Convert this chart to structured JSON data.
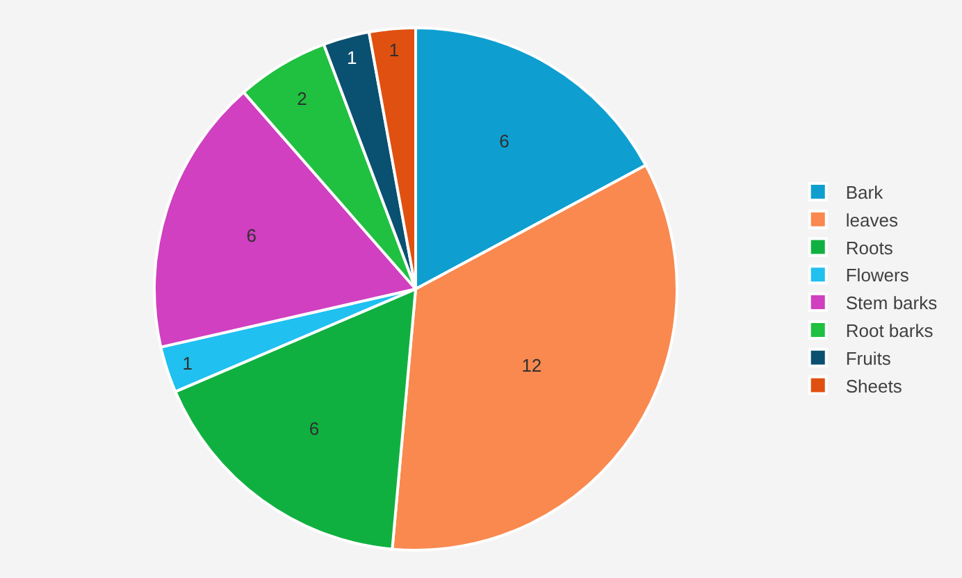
{
  "chart_data": {
    "type": "pie",
    "categories": [
      "Bark",
      "leaves",
      "Roots",
      "Flowers",
      "Stem barks",
      "Root barks",
      "Fruits",
      "Sheets"
    ],
    "values": [
      6,
      12,
      6,
      1,
      6,
      2,
      1,
      1
    ],
    "colors": [
      "#0e9fd0",
      "#f9894f",
      "#10b040",
      "#20c0f0",
      "#d040c0",
      "#20c040",
      "#0a5070",
      "#e05010"
    ],
    "data_labels": true,
    "legend": "right"
  }
}
